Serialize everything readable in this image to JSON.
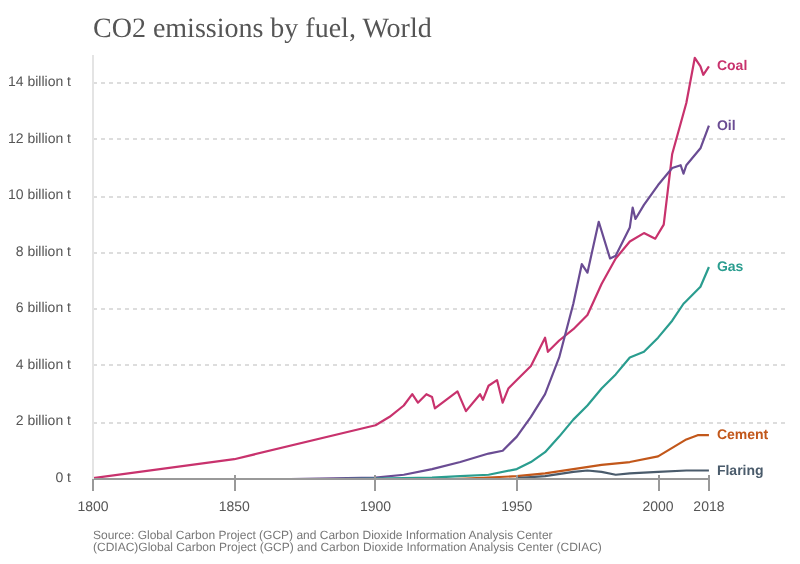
{
  "chart_data": {
    "type": "line",
    "title": "CO2 emissions by fuel, World",
    "annotations": [
      "Source: Global Carbon Project (GCP) and Carbon Dioxide Information Analysis Center (CDIAC)Global Carbon Project (GCP) and Carbon Dioxide Information Analysis Center (CDIAC)"
    ],
    "xlim": [
      1800,
      2018
    ],
    "xticks": [
      1800,
      1850,
      1900,
      1950,
      2000,
      2018
    ],
    "ylim": [
      0,
      15
    ],
    "yticks": [
      {
        "value": 0,
        "label": "0 t"
      },
      {
        "value": 2,
        "label": "2 billion t"
      },
      {
        "value": 4,
        "label": "4 billion t"
      },
      {
        "value": 6,
        "label": "6 billion t"
      },
      {
        "value": 8,
        "label": "8 billion t"
      },
      {
        "value": 10,
        "label": "10 billion t"
      },
      {
        "value": 12,
        "label": "12 billion t"
      },
      {
        "value": 14,
        "label": "14 billion t"
      }
    ],
    "grid": "y",
    "marker": "none",
    "line_style": "solid",
    "series": [
      {
        "name": "Coal",
        "color": "#c8326d",
        "x": [
          1800,
          1850,
          1900,
          1905,
          1910,
          1913,
          1915,
          1918,
          1920,
          1921,
          1925,
          1929,
          1932,
          1937,
          1938,
          1940,
          1943,
          1945,
          1947,
          1950,
          1955,
          1960,
          1961,
          1965,
          1970,
          1975,
          1980,
          1985,
          1990,
          1995,
          1999,
          2002,
          2005,
          2010,
          2013,
          2015,
          2016,
          2018
        ],
        "values": [
          0.03,
          0.7,
          1.9,
          2.2,
          2.6,
          3.0,
          2.7,
          3.0,
          2.9,
          2.5,
          2.8,
          3.1,
          2.4,
          3.0,
          2.8,
          3.3,
          3.5,
          2.7,
          3.2,
          3.5,
          4.0,
          5.0,
          4.5,
          4.9,
          5.3,
          5.8,
          6.9,
          7.8,
          8.4,
          8.7,
          8.5,
          9.0,
          11.5,
          13.3,
          14.9,
          14.6,
          14.3,
          14.6
        ]
      },
      {
        "name": "Oil",
        "color": "#6a4c93",
        "x": [
          1870,
          1900,
          1910,
          1920,
          1930,
          1940,
          1945,
          1950,
          1955,
          1960,
          1965,
          1970,
          1973,
          1975,
          1979,
          1983,
          1985,
          1990,
          1991,
          1992,
          1995,
          2000,
          2005,
          2008,
          2009,
          2010,
          2015,
          2018
        ],
        "values": [
          0.0,
          0.05,
          0.15,
          0.35,
          0.6,
          0.9,
          1.0,
          1.5,
          2.2,
          3.0,
          4.3,
          6.2,
          7.6,
          7.3,
          9.1,
          7.8,
          7.9,
          8.9,
          9.6,
          9.2,
          9.7,
          10.4,
          11.0,
          11.1,
          10.8,
          11.1,
          11.7,
          12.5
        ]
      },
      {
        "name": "Gas",
        "color": "#2a9d8f",
        "x": [
          1885,
          1900,
          1920,
          1930,
          1940,
          1950,
          1955,
          1960,
          1965,
          1970,
          1975,
          1980,
          1985,
          1990,
          1995,
          2000,
          2005,
          2009,
          2010,
          2015,
          2018
        ],
        "values": [
          0.0,
          0.01,
          0.05,
          0.1,
          0.15,
          0.35,
          0.6,
          0.95,
          1.5,
          2.1,
          2.6,
          3.2,
          3.7,
          4.3,
          4.5,
          5.0,
          5.6,
          6.2,
          6.3,
          6.8,
          7.5
        ]
      },
      {
        "name": "Cement",
        "color": "#c2571a",
        "x": [
          1928,
          1950,
          1960,
          1970,
          1980,
          1990,
          2000,
          2005,
          2010,
          2014,
          2018
        ],
        "values": [
          0.0,
          0.1,
          0.2,
          0.35,
          0.5,
          0.6,
          0.8,
          1.1,
          1.4,
          1.55,
          1.55
        ]
      },
      {
        "name": "Flaring",
        "color": "#4a5b6b",
        "x": [
          1950,
          1960,
          1970,
          1975,
          1980,
          1985,
          1990,
          2000,
          2010,
          2018
        ],
        "values": [
          0.03,
          0.1,
          0.25,
          0.3,
          0.25,
          0.15,
          0.2,
          0.25,
          0.3,
          0.3
        ]
      }
    ]
  }
}
